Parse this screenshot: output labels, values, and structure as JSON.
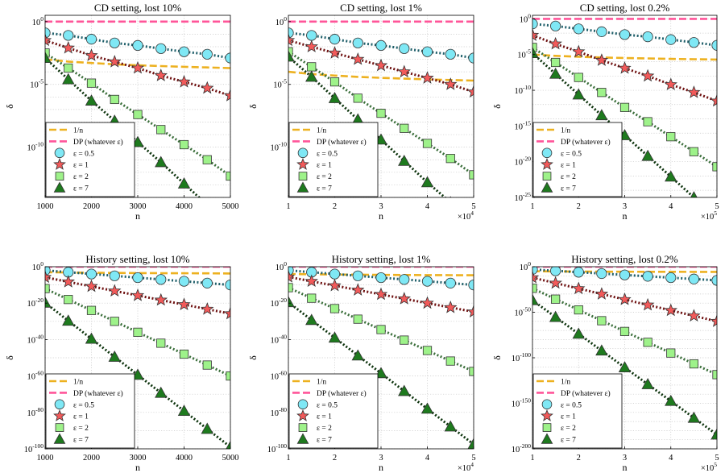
{
  "colors": {
    "n_inverse_line": "#EDB120",
    "dp_line": "#FF5599",
    "eps_0_5_fill": "#7FE8F5",
    "eps_0_5_line": "#1F5F6A",
    "eps_1_fill": "#F25A5A",
    "eps_1_line": "#6E1010",
    "eps_2_fill": "#9EF28A",
    "eps_2_line": "#3A6E3A",
    "eps_7_fill": "#1E7A1E",
    "eps_7_line": "#0C330C",
    "grid": "#c8c8c8"
  },
  "chart_data": [
    {
      "type": "line",
      "title": "CD setting, lost 10%",
      "xlabel": "n",
      "ylabel": "δ",
      "yscale": "log",
      "xlim": [
        1000,
        5000
      ],
      "ylim_log10": [
        -14,
        0.5
      ],
      "xticks": [
        1000,
        2000,
        3000,
        4000,
        5000
      ],
      "xtick_labels": [
        "1000",
        "2000",
        "3000",
        "4000",
        "5000"
      ],
      "x_multiplier": "",
      "yticks": [
        {
          "base": "10",
          "exp": "0",
          "log": 0
        },
        {
          "base": "10",
          "exp": "-5",
          "log": -5
        },
        {
          "base": "10",
          "exp": "-10",
          "log": -10
        }
      ],
      "grid": true,
      "legend_position": "bottom-left",
      "x": [
        1000,
        1500,
        2000,
        2500,
        3000,
        3500,
        4000,
        4500,
        5000
      ],
      "series": [
        {
          "name": "1/n",
          "kind": "ref",
          "log10": [
            -3.0,
            -3.18,
            -3.3,
            -3.4,
            -3.48,
            -3.54,
            -3.6,
            -3.65,
            -3.7
          ]
        },
        {
          "name": "DP (whatever ε)",
          "kind": "dp",
          "log10": [
            0,
            0,
            0,
            0,
            0,
            0,
            0,
            0,
            0
          ]
        },
        {
          "name": "ε = 0.5",
          "kind": "circle",
          "log10": [
            -0.9,
            -1.1,
            -1.4,
            -1.7,
            -1.9,
            -2.15,
            -2.4,
            -2.6,
            -2.9
          ]
        },
        {
          "name": "ε = 1",
          "kind": "star",
          "log10": [
            -1.5,
            -2.1,
            -2.7,
            -3.2,
            -3.7,
            -4.3,
            -4.8,
            -5.3,
            -5.9
          ]
        },
        {
          "name": "ε = 2",
          "kind": "square",
          "log10": [
            -2.5,
            -3.7,
            -4.9,
            -6.2,
            -7.4,
            -8.6,
            -9.8,
            -11.0,
            -12.3
          ]
        },
        {
          "name": "ε = 7",
          "kind": "triangle",
          "log10": [
            -2.9,
            -4.6,
            -6.3,
            -7.9,
            -9.6,
            -11.2,
            -12.9,
            -14.6,
            -16.2
          ]
        }
      ]
    },
    {
      "type": "line",
      "title": "CD setting, lost 1%",
      "xlabel": "n",
      "ylabel": "δ",
      "yscale": "log",
      "xlim": [
        1,
        5
      ],
      "ylim_log10": [
        -14,
        0.5
      ],
      "xticks": [
        1,
        2,
        3,
        4,
        5
      ],
      "xtick_labels": [
        "1",
        "2",
        "3",
        "4",
        "5"
      ],
      "x_multiplier": {
        "base": "×10",
        "exp": "4"
      },
      "yticks": [
        {
          "base": "10",
          "exp": "0",
          "log": 0
        },
        {
          "base": "10",
          "exp": "-5",
          "log": -5
        },
        {
          "base": "10",
          "exp": "-10",
          "log": -10
        }
      ],
      "grid": true,
      "legend_position": "bottom-left",
      "x": [
        1,
        1.5,
        2,
        2.5,
        3,
        3.5,
        4,
        4.5,
        5
      ],
      "series": [
        {
          "name": "1/n",
          "kind": "ref",
          "log10": [
            -4.0,
            -4.18,
            -4.3,
            -4.4,
            -4.48,
            -4.54,
            -4.6,
            -4.65,
            -4.7
          ]
        },
        {
          "name": "DP (whatever ε)",
          "kind": "dp",
          "log10": [
            0,
            0,
            0,
            0,
            0,
            0,
            0,
            0,
            0
          ]
        },
        {
          "name": "ε = 0.5",
          "kind": "circle",
          "log10": [
            -0.9,
            -1.1,
            -1.4,
            -1.7,
            -1.9,
            -2.15,
            -2.4,
            -2.6,
            -2.9
          ]
        },
        {
          "name": "ε = 1",
          "kind": "star",
          "log10": [
            -1.5,
            -2.0,
            -2.5,
            -3.0,
            -3.5,
            -4.0,
            -4.5,
            -5.0,
            -5.6
          ]
        },
        {
          "name": "ε = 2",
          "kind": "square",
          "log10": [
            -2.4,
            -3.6,
            -4.8,
            -6.1,
            -7.3,
            -8.5,
            -9.7,
            -10.9,
            -12.2
          ]
        },
        {
          "name": "ε = 7",
          "kind": "triangle",
          "log10": [
            -2.8,
            -4.4,
            -6.1,
            -7.8,
            -9.4,
            -11.1,
            -12.8,
            -14.4,
            -16.1
          ]
        }
      ]
    },
    {
      "type": "line",
      "title": "CD setting, lost 0.2%",
      "xlabel": "n",
      "ylabel": "δ",
      "yscale": "log",
      "xlim": [
        1,
        5
      ],
      "ylim_log10": [
        -25,
        0.5
      ],
      "xticks": [
        1,
        2,
        3,
        4,
        5
      ],
      "xtick_labels": [
        "1",
        "2",
        "3",
        "4",
        "5"
      ],
      "x_multiplier": {
        "base": "×10",
        "exp": "5"
      },
      "yticks": [
        {
          "base": "10",
          "exp": "0",
          "log": 0
        },
        {
          "base": "10",
          "exp": "-5",
          "log": -5
        },
        {
          "base": "10",
          "exp": "-10",
          "log": -10
        },
        {
          "base": "10",
          "exp": "-15",
          "log": -15
        },
        {
          "base": "10",
          "exp": "-20",
          "log": -20
        },
        {
          "base": "10",
          "exp": "-25",
          "log": -25
        }
      ],
      "grid": true,
      "legend_position": "bottom-left",
      "x": [
        1,
        1.5,
        2,
        2.5,
        3,
        3.5,
        4,
        4.5,
        5
      ],
      "series": [
        {
          "name": "1/n",
          "kind": "ref",
          "log10": [
            -5.0,
            -5.18,
            -5.3,
            -5.4,
            -5.48,
            -5.54,
            -5.6,
            -5.65,
            -5.7
          ]
        },
        {
          "name": "DP (whatever ε)",
          "kind": "dp",
          "log10": [
            0,
            0,
            0,
            0,
            0,
            0,
            0,
            0,
            0
          ]
        },
        {
          "name": "ε = 0.5",
          "kind": "circle",
          "log10": [
            -0.7,
            -1.0,
            -1.4,
            -1.8,
            -2.2,
            -2.5,
            -2.9,
            -3.3,
            -3.7
          ]
        },
        {
          "name": "ε = 1",
          "kind": "star",
          "log10": [
            -2.3,
            -3.5,
            -4.6,
            -5.8,
            -6.9,
            -8.0,
            -9.2,
            -10.3,
            -11.5
          ]
        },
        {
          "name": "ε = 2",
          "kind": "square",
          "log10": [
            -4.0,
            -6.1,
            -8.2,
            -10.3,
            -12.4,
            -14.4,
            -16.5,
            -18.6,
            -20.7
          ]
        },
        {
          "name": "ε = 7",
          "kind": "triangle",
          "log10": [
            -4.8,
            -7.7,
            -10.6,
            -13.5,
            -16.3,
            -19.2,
            -22.1,
            -25.0,
            -27.9
          ]
        }
      ]
    },
    {
      "type": "line",
      "title": "History setting, lost 10%",
      "xlabel": "n",
      "ylabel": "δ",
      "yscale": "log",
      "xlim": [
        1000,
        5000
      ],
      "ylim_log10": [
        -100,
        0
      ],
      "xticks": [
        1000,
        2000,
        3000,
        4000,
        5000
      ],
      "xtick_labels": [
        "1000",
        "2000",
        "3000",
        "4000",
        "5000"
      ],
      "x_multiplier": "",
      "yticks": [
        {
          "base": "10",
          "exp": "0",
          "log": 0
        },
        {
          "base": "10",
          "exp": "-20",
          "log": -20
        },
        {
          "base": "10",
          "exp": "-40",
          "log": -40
        },
        {
          "base": "10",
          "exp": "-60",
          "log": -60
        },
        {
          "base": "10",
          "exp": "-80",
          "log": -80
        },
        {
          "base": "10",
          "exp": "-100",
          "log": -100
        }
      ],
      "grid": true,
      "legend_position": "bottom-left",
      "x": [
        1000,
        1500,
        2000,
        2500,
        3000,
        3500,
        4000,
        4500,
        5000
      ],
      "series": [
        {
          "name": "1/n",
          "kind": "ref",
          "log10": [
            -3.0,
            -3.18,
            -3.3,
            -3.4,
            -3.48,
            -3.54,
            -3.6,
            -3.65,
            -3.7
          ]
        },
        {
          "name": "DP (whatever ε)",
          "kind": "dp",
          "log10": [
            0,
            0,
            0,
            0,
            0,
            0,
            0,
            0,
            0
          ]
        },
        {
          "name": "ε = 0.5",
          "kind": "circle",
          "log10": [
            -2.0,
            -3.0,
            -4.0,
            -5.0,
            -6.0,
            -7.0,
            -8.0,
            -9.0,
            -10.0
          ]
        },
        {
          "name": "ε = 1",
          "kind": "star",
          "log10": [
            -5.8,
            -8.3,
            -10.8,
            -13.3,
            -15.8,
            -18.3,
            -20.8,
            -23.3,
            -25.8
          ]
        },
        {
          "name": "ε = 2",
          "kind": "square",
          "log10": [
            -12.0,
            -18.0,
            -24.0,
            -30.0,
            -36.0,
            -42.0,
            -48.0,
            -54.0,
            -60.0
          ]
        },
        {
          "name": "ε = 7",
          "kind": "triangle",
          "log10": [
            -19.8,
            -29.7,
            -39.6,
            -49.5,
            -59.4,
            -69.3,
            -79.2,
            -89.1,
            -99.0
          ]
        }
      ]
    },
    {
      "type": "line",
      "title": "History setting, lost 1%",
      "xlabel": "n",
      "ylabel": "δ",
      "yscale": "log",
      "xlim": [
        1,
        5
      ],
      "ylim_log10": [
        -100,
        0
      ],
      "xticks": [
        1,
        2,
        3,
        4,
        5
      ],
      "xtick_labels": [
        "1",
        "2",
        "3",
        "4",
        "5"
      ],
      "x_multiplier": {
        "base": "×10",
        "exp": "4"
      },
      "yticks": [
        {
          "base": "10",
          "exp": "0",
          "log": 0
        },
        {
          "base": "10",
          "exp": "-20",
          "log": -20
        },
        {
          "base": "10",
          "exp": "-40",
          "log": -40
        },
        {
          "base": "10",
          "exp": "-60",
          "log": -60
        },
        {
          "base": "10",
          "exp": "-80",
          "log": -80
        },
        {
          "base": "10",
          "exp": "-100",
          "log": -100
        }
      ],
      "grid": true,
      "legend_position": "bottom-left",
      "x": [
        1,
        1.5,
        2,
        2.5,
        3,
        3.5,
        4,
        4.5,
        5
      ],
      "series": [
        {
          "name": "1/n",
          "kind": "ref",
          "log10": [
            -4.0,
            -4.18,
            -4.3,
            -4.4,
            -4.48,
            -4.54,
            -4.6,
            -4.65,
            -4.7
          ]
        },
        {
          "name": "DP (whatever ε)",
          "kind": "dp",
          "log10": [
            0,
            0,
            0,
            0,
            0,
            0,
            0,
            0,
            0
          ]
        },
        {
          "name": "ε = 0.5",
          "kind": "circle",
          "log10": [
            -2.0,
            -3.0,
            -4.0,
            -5.0,
            -6.0,
            -7.0,
            -8.0,
            -9.0,
            -10.0
          ]
        },
        {
          "name": "ε = 1",
          "kind": "star",
          "log10": [
            -5.6,
            -8.0,
            -10.4,
            -12.8,
            -15.2,
            -17.6,
            -20.0,
            -22.4,
            -24.8
          ]
        },
        {
          "name": "ε = 2",
          "kind": "square",
          "log10": [
            -11.5,
            -17.3,
            -23.0,
            -28.8,
            -34.5,
            -40.3,
            -46.0,
            -51.8,
            -57.5
          ]
        },
        {
          "name": "ε = 7",
          "kind": "triangle",
          "log10": [
            -19.5,
            -29.3,
            -39.0,
            -48.8,
            -58.5,
            -68.3,
            -78.0,
            -87.8,
            -97.5
          ]
        }
      ]
    },
    {
      "type": "line",
      "title": "History setting, lost 0.2%",
      "xlabel": "n",
      "ylabel": "δ",
      "yscale": "log",
      "xlim": [
        1,
        5
      ],
      "ylim_log10": [
        -200,
        0
      ],
      "xticks": [
        1,
        2,
        3,
        4,
        5
      ],
      "xtick_labels": [
        "1",
        "2",
        "3",
        "4",
        "5"
      ],
      "x_multiplier": {
        "base": "×10",
        "exp": "5"
      },
      "yticks": [
        {
          "base": "10",
          "exp": "0",
          "log": 0
        },
        {
          "base": "10",
          "exp": "-50",
          "log": -50
        },
        {
          "base": "10",
          "exp": "-100",
          "log": -100
        },
        {
          "base": "10",
          "exp": "-150",
          "log": -150
        },
        {
          "base": "10",
          "exp": "-200",
          "log": -200
        }
      ],
      "grid": true,
      "legend_position": "bottom-left",
      "x": [
        1,
        1.5,
        2,
        2.5,
        3,
        3.5,
        4,
        4.5,
        5
      ],
      "series": [
        {
          "name": "1/n",
          "kind": "ref",
          "log10": [
            -5.0,
            -5.18,
            -5.3,
            -5.4,
            -5.48,
            -5.54,
            -5.6,
            -5.65,
            -5.7
          ]
        },
        {
          "name": "DP (whatever ε)",
          "kind": "dp",
          "log10": [
            0,
            0,
            0,
            0,
            0,
            0,
            0,
            0,
            0
          ]
        },
        {
          "name": "ε = 0.5",
          "kind": "circle",
          "log10": [
            -3.0,
            -4.5,
            -6.0,
            -7.5,
            -9.0,
            -10.5,
            -12.0,
            -13.5,
            -15.0
          ]
        },
        {
          "name": "ε = 1",
          "kind": "star",
          "log10": [
            -12.0,
            -18.0,
            -24.0,
            -30.0,
            -36.0,
            -42.0,
            -48.0,
            -54.0,
            -60.0
          ]
        },
        {
          "name": "ε = 2",
          "kind": "square",
          "log10": [
            -23.7,
            -35.6,
            -47.4,
            -59.3,
            -71.1,
            -83.0,
            -94.8,
            -106.7,
            -118.5
          ]
        },
        {
          "name": "ε = 7",
          "kind": "triangle",
          "log10": [
            -36.8,
            -55.3,
            -73.7,
            -92.2,
            -110.6,
            -129.1,
            -147.5,
            -166.0,
            -184.4
          ]
        }
      ]
    }
  ]
}
